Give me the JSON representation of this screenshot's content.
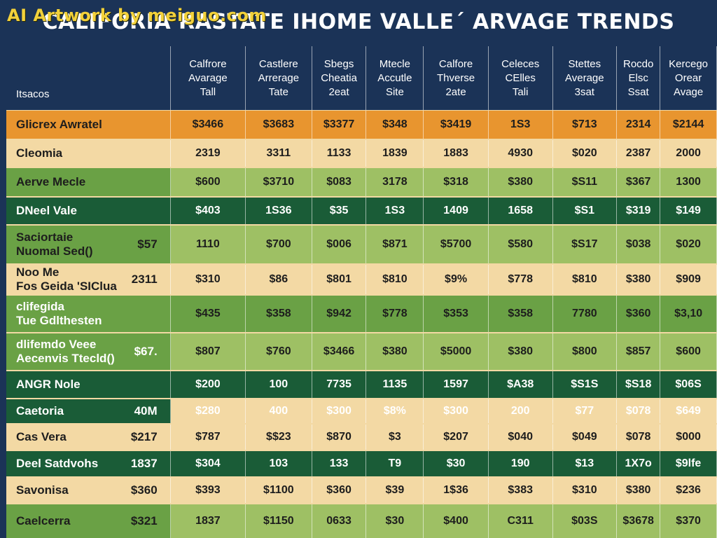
{
  "watermark": "AI Artwork by meiguo.com",
  "title": "CALIFORIA RASTATE IHOME VALLE´ ARVAGE TRENDS",
  "colors": {
    "navy": "#1b3357",
    "orange": "#e8952f",
    "beige": "#f3d9a4",
    "light_green": "#9ec064",
    "mid_green": "#6aa145",
    "dark_green": "#1a5c37",
    "watermark_yellow": "#f2d13b"
  },
  "table": {
    "header": {
      "label": "Itsacos",
      "columns": [
        [
          "Calfrore",
          "Avarage",
          "Tall"
        ],
        [
          "Castlere",
          "Arrerage",
          "Tate"
        ],
        [
          "Sbegs",
          "Cheatia",
          "2eat"
        ],
        [
          "Mtecle",
          "Accutle",
          "Site"
        ],
        [
          "Calfore",
          "Thverse",
          "2ate"
        ],
        [
          "Celeces",
          "CElles",
          "Tali"
        ],
        [
          "Stettes",
          "Average",
          "3sat"
        ],
        [
          "Rocdo",
          "Elsc",
          "Ssat"
        ],
        [
          "Kercego",
          "Orear",
          "Avage"
        ]
      ]
    },
    "rows": [
      {
        "label": [
          "Glicrex Awratel"
        ],
        "extra": "",
        "values": [
          "$3466",
          "$3683",
          "$3377",
          "$348",
          "$3419",
          "1S3",
          "$713",
          "2314",
          "$2144"
        ]
      },
      {
        "label": [
          "Cleomia"
        ],
        "extra": "",
        "values": [
          "2319",
          "3311",
          "1133",
          "1839",
          "1883",
          "4930",
          "$020",
          "2387",
          "2000"
        ]
      },
      {
        "label": [
          "Aerve Mecle"
        ],
        "extra": "",
        "values": [
          "$600",
          "$3710",
          "$083",
          "3178",
          "$318",
          "$380",
          "$S11",
          "$367",
          "1300"
        ]
      },
      {
        "label": [
          "DNeel Vale"
        ],
        "extra": "",
        "values": [
          "$403",
          "1S36",
          "$35",
          "1S3",
          "1409",
          "1658",
          "$S1",
          "$319",
          "$149"
        ]
      },
      {
        "label": [
          "Saciortaie",
          "Nuomal Sed()"
        ],
        "extra": "$57",
        "values": [
          "1110",
          "$700",
          "$006",
          "$871",
          "$5700",
          "$580",
          "$S17",
          "$038",
          "$020"
        ]
      },
      {
        "label": [
          "Noo Me",
          "Fos Geida 'SIClua"
        ],
        "extra": "2311",
        "values": [
          "$310",
          "$86",
          "$801",
          "$810",
          "$9%",
          "$778",
          "$810",
          "$380",
          "$909"
        ]
      },
      {
        "label": [
          "clifegida",
          "Tue Gdlthesten"
        ],
        "extra": "",
        "values": [
          "$435",
          "$358",
          "$942",
          "$778",
          "$353",
          "$358",
          "7780",
          "$360",
          "$3,10"
        ]
      },
      {
        "label": [
          "dlifemdo Veee",
          "Aecenvis Ttecld()"
        ],
        "extra": "$67.",
        "values": [
          "$807",
          "$760",
          "$3466",
          "$380",
          "$5000",
          "$380",
          "$800",
          "$857",
          "$600"
        ]
      },
      {
        "label": [
          "ANGR Nole"
        ],
        "extra": "",
        "values": [
          "$200",
          "100",
          "7735",
          "1135",
          "1597",
          "$A38",
          "$S1S",
          "$S18",
          "$06S"
        ]
      },
      {
        "label": [
          "Caetoria"
        ],
        "extra": "40M",
        "values": [
          "$280",
          "400",
          "$300",
          "$8%",
          "$300",
          "200",
          "$77",
          "$078",
          "$649"
        ]
      },
      {
        "label": [
          "Cas Vera"
        ],
        "extra": "$217",
        "values": [
          "$787",
          "$$23",
          "$870",
          "$3",
          "$207",
          "$040",
          "$049",
          "$078",
          "$000"
        ]
      },
      {
        "label": [
          "Deel Satdvohs"
        ],
        "extra": "1837",
        "values": [
          "$304",
          "103",
          "133",
          "T9",
          "$30",
          "190",
          "$13",
          "1X7o",
          "$9lfe"
        ]
      },
      {
        "label": [
          "Savonisa"
        ],
        "extra": "$360",
        "values": [
          "$393",
          "$1100",
          "$360",
          "$39",
          "1$36",
          "$383",
          "$310",
          "$380",
          "$236"
        ]
      },
      {
        "label": [
          "Caelcerra"
        ],
        "extra": "$321",
        "values": [
          "1837",
          "$1150",
          "0633",
          "$30",
          "$400",
          "C311",
          "$03S",
          "$3678",
          "$370"
        ]
      }
    ]
  }
}
